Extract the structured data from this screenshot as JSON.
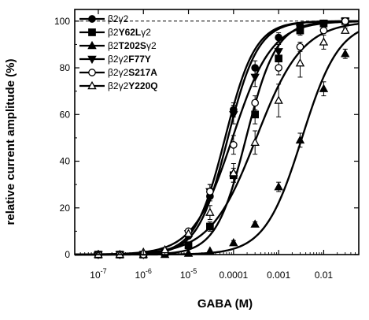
{
  "chart_data": {
    "type": "scatter",
    "title": "",
    "xlabel": "GABA (M)",
    "ylabel": "relative current amplitude (%)",
    "x_scale": "log",
    "xlim": [
      3e-08,
      0.06
    ],
    "ylim": [
      0,
      105
    ],
    "x_ticks": [
      {
        "value": 1e-07,
        "base": "10",
        "exp": "-7"
      },
      {
        "value": 1e-06,
        "base": "10",
        "exp": "-6"
      },
      {
        "value": 1e-05,
        "base": "10",
        "exp": "-5"
      },
      {
        "value": 0.0001,
        "base": "0.0001",
        "exp": ""
      },
      {
        "value": 0.001,
        "base": "0.001",
        "exp": ""
      },
      {
        "value": 0.01,
        "base": "0.01",
        "exp": ""
      }
    ],
    "y_ticks": [
      0,
      20,
      40,
      60,
      80,
      100
    ],
    "reference_line": {
      "y": 100,
      "style": "dashed"
    },
    "legend_position": "top-left",
    "series": [
      {
        "name": "β2γ2",
        "legend_parts": [
          "β2γ2"
        ],
        "marker": "circle",
        "filled": true,
        "x": [
          1e-07,
          3e-07,
          1e-06,
          3e-06,
          1e-05,
          3e-05,
          0.0001,
          0.0003,
          0.001,
          0.003,
          0.01,
          0.03
        ],
        "y": [
          0,
          0,
          0,
          1,
          8,
          25,
          62,
          80,
          93,
          98,
          99,
          100
        ],
        "err": [
          0,
          0,
          0,
          0,
          1,
          2,
          3,
          3,
          2,
          1,
          1,
          0
        ],
        "ec50": 7.5e-05,
        "hill": 1.3
      },
      {
        "name": "β2Y62Lγ2",
        "legend_parts": [
          "β2",
          "Y62L",
          "γ2"
        ],
        "marker": "square",
        "filled": true,
        "x": [
          1e-07,
          3e-07,
          1e-06,
          3e-06,
          1e-05,
          3e-05,
          0.0001,
          0.0003,
          0.001,
          0.003,
          0.01,
          0.03
        ],
        "y": [
          0,
          0,
          0,
          1,
          4,
          12,
          34,
          60,
          84,
          96,
          99,
          100
        ],
        "err": [
          0,
          0,
          0,
          0,
          1,
          2,
          3,
          4,
          3,
          2,
          1,
          0
        ],
        "ec50": 0.00019,
        "hill": 1.3
      },
      {
        "name": "β2T202Sγ2",
        "legend_parts": [
          "β2",
          "T202S",
          "γ2"
        ],
        "marker": "triangle-up",
        "filled": true,
        "x": [
          1e-07,
          3e-07,
          1e-06,
          3e-06,
          1e-05,
          3e-05,
          0.0001,
          0.0003,
          0.001,
          0.003,
          0.01,
          0.03
        ],
        "y": [
          0,
          0,
          0,
          0,
          0.5,
          1.5,
          5,
          13,
          29,
          49,
          71,
          86
        ],
        "err": [
          0,
          0,
          0,
          0,
          0,
          0,
          1,
          1,
          2,
          3,
          3,
          2
        ],
        "ec50": 0.0033,
        "hill": 1.05
      },
      {
        "name": "β2γ2F77Y",
        "legend_parts": [
          "β2γ2",
          "F77Y"
        ],
        "marker": "triangle-down",
        "filled": true,
        "x": [
          1e-07,
          3e-07,
          1e-06,
          3e-06,
          1e-05,
          3e-05,
          0.0001,
          0.0003,
          0.001,
          0.003,
          0.01,
          0.03
        ],
        "y": [
          0,
          0,
          0,
          1,
          9,
          27,
          60,
          76,
          87,
          97,
          99,
          100
        ],
        "err": [
          0,
          0,
          0,
          0,
          1,
          3,
          4,
          4,
          3,
          2,
          1,
          0
        ],
        "ec50": 6.5e-05,
        "hill": 1.3
      },
      {
        "name": "β2γ2S217A",
        "legend_parts": [
          "β2γ2",
          "S217A"
        ],
        "marker": "circle",
        "filled": false,
        "x": [
          1e-07,
          3e-07,
          1e-06,
          3e-06,
          1e-05,
          3e-05,
          0.0001,
          0.0003,
          0.001,
          0.003,
          0.01,
          0.03
        ],
        "y": [
          0,
          0,
          0,
          1,
          10,
          27,
          47,
          65,
          80,
          89,
          96,
          100
        ],
        "err": [
          0,
          0,
          0,
          0,
          1,
          3,
          4,
          3,
          3,
          2,
          1,
          0
        ],
        "ec50": 9.5e-05,
        "hill": 1.0
      },
      {
        "name": "β2γ2Y220Q",
        "legend_parts": [
          "β2γ2",
          "Y220Q"
        ],
        "marker": "triangle-up",
        "filled": false,
        "x": [
          1e-07,
          3e-07,
          1e-06,
          3e-06,
          1e-05,
          3e-05,
          0.0001,
          0.0003,
          0.001,
          0.003,
          0.01,
          0.03
        ],
        "y": [
          0,
          0,
          1,
          2,
          9,
          18,
          35,
          48,
          66,
          82,
          91,
          96
        ],
        "err": [
          0,
          0,
          0,
          0,
          2,
          3,
          4,
          5,
          7,
          6,
          3,
          1
        ],
        "ec50": 0.00032,
        "hill": 0.85
      }
    ]
  }
}
